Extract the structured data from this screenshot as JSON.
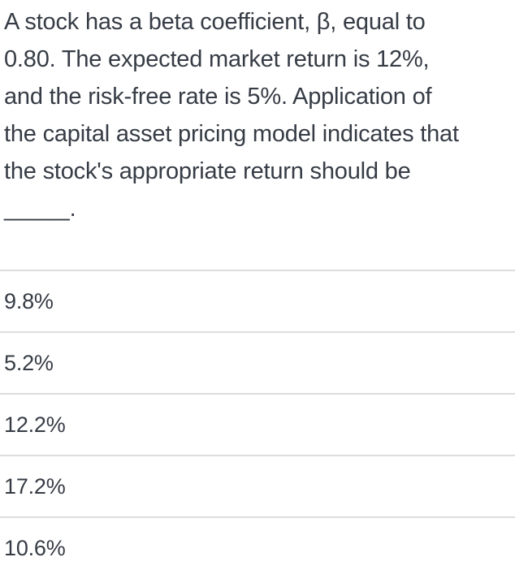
{
  "question": {
    "text": "A stock has a beta coefficient, β, equal to 0.80. The expected market return is 12%, and the risk-free rate is 5%. Application of the capital asset pricing model indicates that the stock's appropriate return should be _____.",
    "lines": [
      "A stock has a beta coefficient, β, equal to",
      "0.80. The expected market return is 12%,",
      "and the risk-free rate is 5%. Application of",
      "the capital asset pricing model indicates that",
      "the stock's appropriate return should be",
      "_____."
    ]
  },
  "options": [
    {
      "label": "9.8%"
    },
    {
      "label": "5.2%"
    },
    {
      "label": "12.2%"
    },
    {
      "label": "17.2%"
    },
    {
      "label": "10.6%"
    }
  ],
  "colors": {
    "text": "#363c45",
    "divider": "#dddddd",
    "background": "#ffffff"
  }
}
